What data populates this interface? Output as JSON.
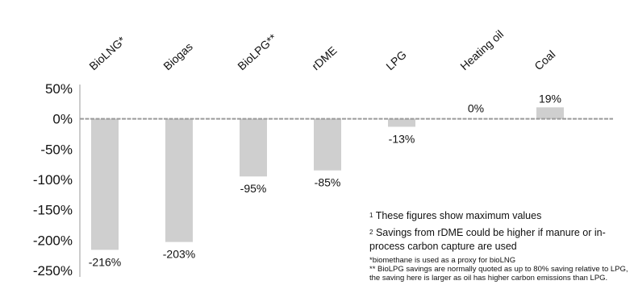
{
  "chart_data": {
    "type": "bar",
    "categories": [
      "BioLNG*",
      "Biogas",
      "BioLPG**",
      "rDME",
      "LPG",
      "Heating oil",
      "Coal"
    ],
    "values": [
      -216,
      -203,
      -95,
      -85,
      -13,
      0,
      19
    ],
    "data_labels": [
      "-216%",
      "-203%",
      "-95%",
      "-85%",
      "-13%",
      "0%",
      "19%"
    ],
    "yticks": [
      50,
      0,
      -50,
      -100,
      -150,
      -200,
      -250
    ],
    "ytick_labels": [
      "50%",
      "0%",
      "-50%",
      "-100%",
      "-150%",
      "-200%",
      "-250%"
    ],
    "ylim": [
      -250,
      50
    ],
    "grid": false,
    "legend": "none",
    "bar_color": "#cfcfcf"
  },
  "notes": {
    "note1_marker": "1",
    "note1_text": "These figures show maximum values",
    "note2_marker": "2",
    "note2_text": "Savings from rDME could be higher if manure or in-process carbon capture are used",
    "footnote1": "*biomethane is used as a proxy for bioLNG",
    "footnote2": "** BioLPG savings are normally quoted as up to 80% saving relative to LPG, the saving here is larger as oil has higher carbon emissions than LPG."
  }
}
